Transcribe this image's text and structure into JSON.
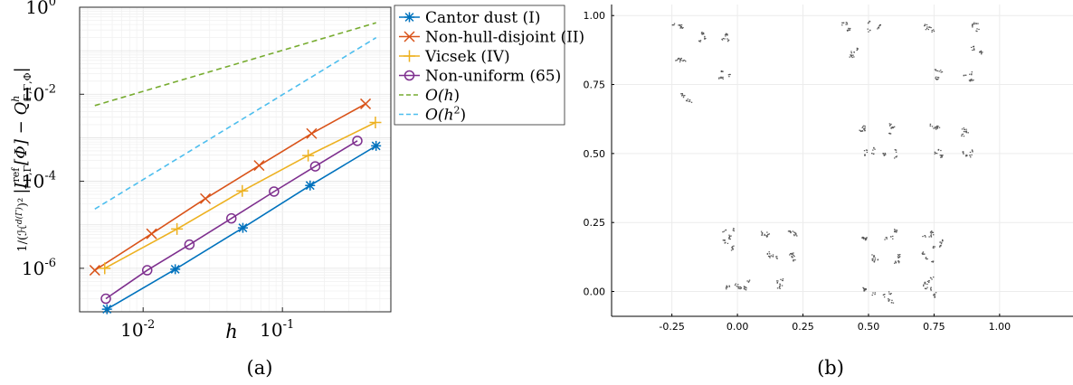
{
  "chart_data": [
    {
      "panel_label": "(a)",
      "type": "line",
      "xlabel": "h",
      "ylabel": "1/(H^d(Γ))^2 |I_{Γ,Γ}^{ref}[Φ] − Q_{Γ,Γ,Φ}^h|",
      "ylabel_parts": {
        "prefix": "1",
        "denom": "(ℋ",
        "denom_sup": "d(Γ)",
        "denom_end": ")²",
        "abs_open": "|I",
        "ref_sup": "ref",
        "sub1": "Γ,Γ",
        "mid": "[Φ] − Q",
        "h_sup": "h",
        "sub2": "Γ,Γ,Φ",
        "abs_close": "|"
      },
      "xscale": "log",
      "yscale": "log",
      "xlim": [
        0.0035,
        0.6
      ],
      "ylim": [
        1e-07,
        1
      ],
      "xticks": [
        {
          "value": 0.01,
          "base": "10",
          "exp": "-2"
        },
        {
          "value": 0.1,
          "base": "10",
          "exp": "-1"
        }
      ],
      "yticks": [
        {
          "value": 1e-06,
          "base": "10",
          "exp": "-6"
        },
        {
          "value": 0.0001,
          "base": "10",
          "exp": "-4"
        },
        {
          "value": 0.01,
          "base": "10",
          "exp": "-2"
        },
        {
          "value": 1,
          "base": "10",
          "exp": "0"
        }
      ],
      "grid": true,
      "legend_position": "outside-right",
      "series": [
        {
          "name": "Cantor dust (I)",
          "color": "#0072BD",
          "marker": "asterisk",
          "dash": "solid",
          "points": [
            [
              0.0055,
              1.15e-07
            ],
            [
              0.017,
              9.5e-07
            ],
            [
              0.052,
              8.5e-06
            ],
            [
              0.158,
              8e-05
            ],
            [
              0.47,
              0.00065
            ]
          ]
        },
        {
          "name": "Non-hull-disjoint (II)",
          "color": "#D95319",
          "marker": "x",
          "dash": "solid",
          "points": [
            [
              0.0045,
              9e-07
            ],
            [
              0.0115,
              6.2e-06
            ],
            [
              0.028,
              4e-05
            ],
            [
              0.068,
              0.00023
            ],
            [
              0.162,
              0.00125
            ],
            [
              0.395,
              0.006
            ]
          ]
        },
        {
          "name": "Vicsek (IV)",
          "color": "#EDB120",
          "marker": "plus",
          "dash": "solid",
          "points": [
            [
              0.0053,
              1e-06
            ],
            [
              0.0175,
              8e-06
            ],
            [
              0.0515,
              6e-05
            ],
            [
              0.153,
              0.00039
            ],
            [
              0.465,
              0.00225
            ]
          ]
        },
        {
          "name": "Non-uniform (65)",
          "color": "#7E2F8E",
          "marker": "circle",
          "dash": "solid",
          "points": [
            [
              0.0054,
              2e-07
            ],
            [
              0.0107,
              9e-07
            ],
            [
              0.0215,
              3.5e-06
            ],
            [
              0.043,
              1.4e-05
            ],
            [
              0.087,
              5.8e-05
            ],
            [
              0.172,
              0.00022
            ],
            [
              0.345,
              0.00085
            ]
          ]
        },
        {
          "name": "O(h)",
          "name_parts": {
            "pre": "O(",
            "var": "h",
            "sup": "",
            "post": ")"
          },
          "color": "#77AC30",
          "marker": "none",
          "dash": "dashed",
          "points": [
            [
              0.0045,
              0.0055
            ],
            [
              0.47,
              0.44
            ]
          ]
        },
        {
          "name": "O(h^2)",
          "name_parts": {
            "pre": "O(",
            "var": "h",
            "sup": "2",
            "post": ")"
          },
          "color": "#4DBEEE",
          "marker": "none",
          "dash": "dashed",
          "points": [
            [
              0.0045,
              2.3e-05
            ],
            [
              0.47,
              0.2
            ]
          ]
        }
      ]
    },
    {
      "panel_label": "(b)",
      "type": "scatter",
      "xlabel": "",
      "ylabel": "",
      "xlim": [
        -0.48,
        1.28
      ],
      "ylim": [
        -0.09,
        1.04
      ],
      "xticks": [
        "-0.25",
        "0.00",
        "0.25",
        "0.50",
        "0.75",
        "1.00"
      ],
      "xtick_values": [
        -0.25,
        0,
        0.25,
        0.5,
        0.75,
        1.0
      ],
      "yticks": [
        "0.00",
        "0.25",
        "0.50",
        "0.75",
        "1.00"
      ],
      "ytick_values": [
        0,
        0.25,
        0.5,
        0.75,
        1.0
      ],
      "grid": true,
      "marker_color": "#555555",
      "cluster_centers": [
        [
          -0.23,
          0.97
        ],
        [
          -0.135,
          0.925
        ],
        [
          -0.22,
          0.83
        ],
        [
          -0.05,
          0.92
        ],
        [
          -0.05,
          0.79
        ],
        [
          -0.2,
          0.7
        ],
        [
          0.41,
          0.96
        ],
        [
          0.52,
          0.96
        ],
        [
          0.43,
          0.87
        ],
        [
          0.73,
          0.96
        ],
        [
          0.9,
          0.96
        ],
        [
          0.91,
          0.88
        ],
        [
          0.76,
          0.79
        ],
        [
          0.88,
          0.78
        ],
        [
          0.48,
          0.59
        ],
        [
          0.57,
          0.59
        ],
        [
          0.5,
          0.51
        ],
        [
          0.58,
          0.5
        ],
        [
          0.76,
          0.59
        ],
        [
          0.86,
          0.58
        ],
        [
          0.76,
          0.5
        ],
        [
          0.87,
          0.5
        ],
        [
          -0.04,
          0.21
        ],
        [
          -0.04,
          0.17
        ],
        [
          0.11,
          0.21
        ],
        [
          0.2,
          0.21
        ],
        [
          0.14,
          0.14
        ],
        [
          0.21,
          0.13
        ],
        [
          -0.02,
          0.03
        ],
        [
          0.02,
          0.03
        ],
        [
          0.15,
          0.03
        ],
        [
          0.5,
          0.21
        ],
        [
          0.58,
          0.21
        ],
        [
          0.52,
          0.12
        ],
        [
          0.6,
          0.12
        ],
        [
          0.72,
          0.21
        ],
        [
          0.77,
          0.18
        ],
        [
          0.72,
          0.13
        ],
        [
          0.5,
          0.0
        ],
        [
          0.57,
          -0.02
        ],
        [
          0.72,
          0.04
        ],
        [
          0.74,
          0.0
        ]
      ]
    }
  ]
}
